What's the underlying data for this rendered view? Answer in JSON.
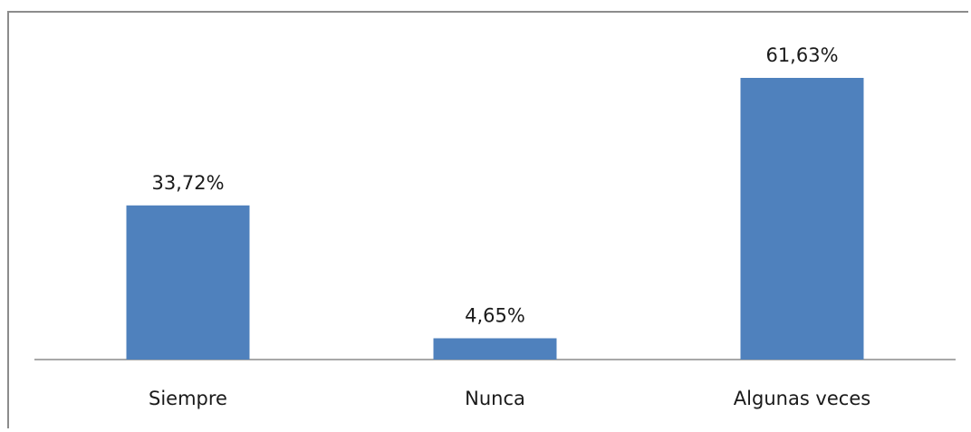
{
  "chart_data": {
    "type": "bar",
    "categories": [
      "Siempre",
      "Nunca",
      "Algunas veces"
    ],
    "values": [
      33.72,
      4.65,
      61.63
    ],
    "data_labels": [
      "33,72%",
      "4,65%",
      "61,63%"
    ],
    "ylim": [
      0,
      70
    ],
    "grid": false,
    "legend": "none",
    "bar_color": "#4f81bd"
  }
}
